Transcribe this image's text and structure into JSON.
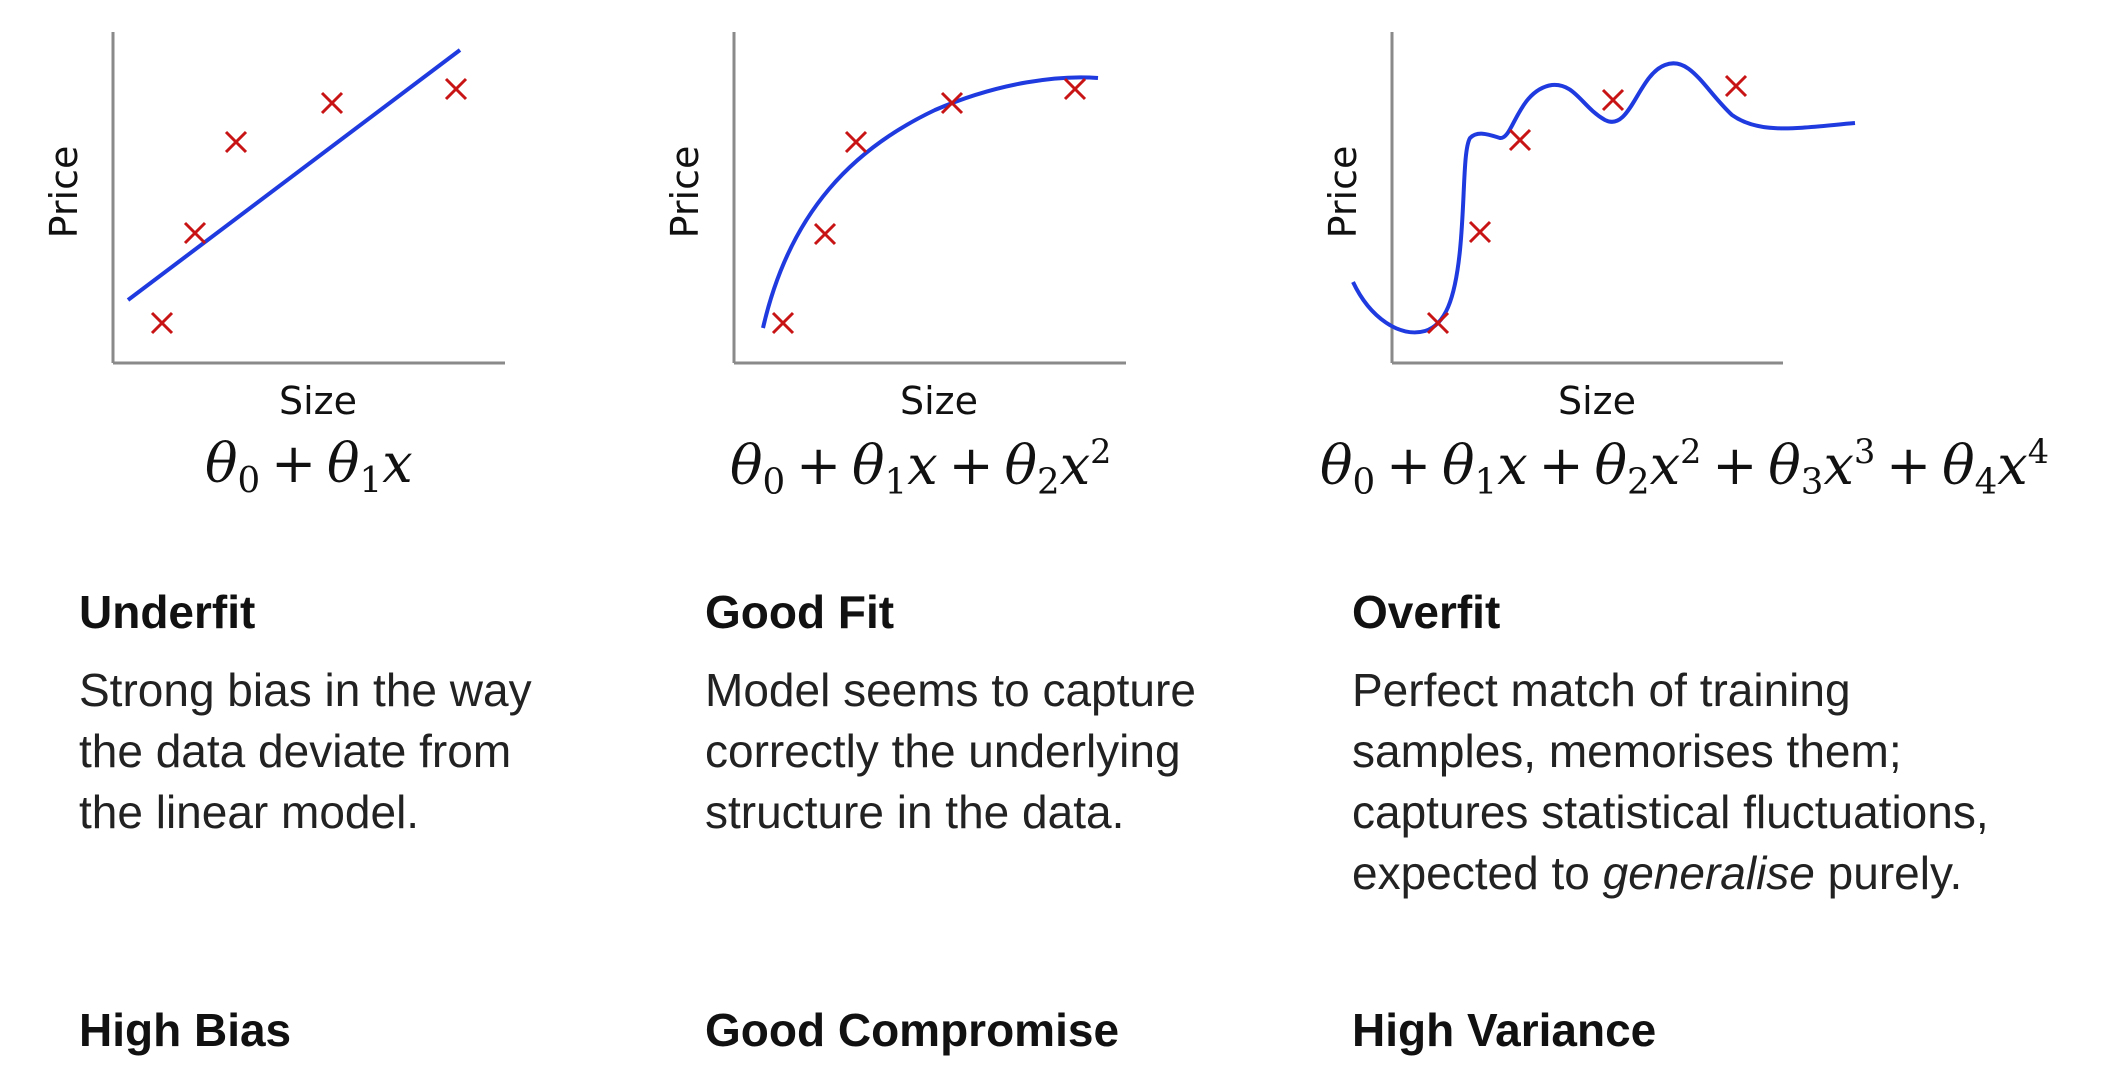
{
  "colors": {
    "curve": "#1f3be0",
    "marker": "#c81414",
    "axis": "#8a8a8a",
    "text": "#111111"
  },
  "panels": [
    {
      "xlabel": "Size",
      "ylabel": "Price",
      "formula_tokens": [
        [
          "v",
          "θ"
        ],
        [
          "sub",
          "0"
        ],
        [
          "op",
          " + "
        ],
        [
          "v",
          "θ"
        ],
        [
          "sub",
          "1"
        ],
        [
          "v",
          "x"
        ]
      ],
      "title": "Underfit",
      "description": [
        "Strong bias in the way",
        "the data deviate from",
        "the linear model."
      ],
      "tradeoff": "High Bias"
    },
    {
      "xlabel": "Size",
      "ylabel": "Price",
      "formula_tokens": [
        [
          "v",
          "θ"
        ],
        [
          "sub",
          "0"
        ],
        [
          "op",
          " + "
        ],
        [
          "v",
          "θ"
        ],
        [
          "sub",
          "1"
        ],
        [
          "v",
          "x"
        ],
        [
          "op",
          " + "
        ],
        [
          "v",
          "θ"
        ],
        [
          "sub",
          "2"
        ],
        [
          "v",
          "x"
        ],
        [
          "sup",
          "2"
        ]
      ],
      "title": "Good Fit",
      "description": [
        "Model seems to capture",
        "correctly the underlying",
        "structure in the data."
      ],
      "tradeoff": "Good Compromise"
    },
    {
      "xlabel": "Size",
      "ylabel": "Price",
      "formula_tokens": [
        [
          "v",
          "θ"
        ],
        [
          "sub",
          "0"
        ],
        [
          "op",
          " + "
        ],
        [
          "v",
          "θ"
        ],
        [
          "sub",
          "1"
        ],
        [
          "v",
          "x"
        ],
        [
          "op",
          " + "
        ],
        [
          "v",
          "θ"
        ],
        [
          "sub",
          "2"
        ],
        [
          "v",
          "x"
        ],
        [
          "sup",
          "2"
        ],
        [
          "op",
          " + "
        ],
        [
          "v",
          "θ"
        ],
        [
          "sub",
          "3"
        ],
        [
          "v",
          "x"
        ],
        [
          "sup",
          "3"
        ],
        [
          "op",
          " + "
        ],
        [
          "v",
          "θ"
        ],
        [
          "sub",
          "4"
        ],
        [
          "v",
          "x"
        ],
        [
          "sup",
          "4"
        ]
      ],
      "title": "Overfit",
      "description_prefix": [
        "Perfect match of training",
        "samples, memorises them;",
        "captures statistical fluctuations,"
      ],
      "description_last_before": "expected to ",
      "description_last_em": "generalise",
      "description_last_after": " purely.",
      "tradeoff": "High Variance"
    }
  ]
}
